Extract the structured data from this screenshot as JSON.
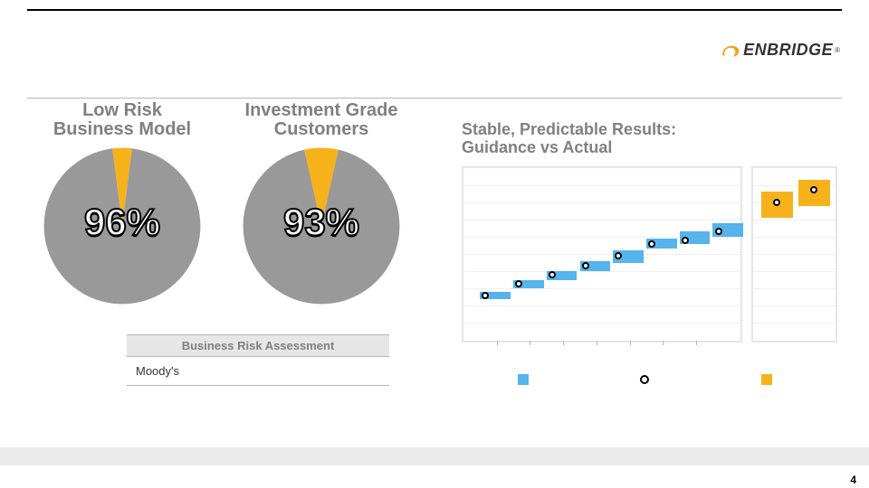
{
  "brand": {
    "name": "ENBRIDGE",
    "mark_color": "#f0a020",
    "text_color": "#333333"
  },
  "page_number": "4",
  "colors": {
    "gray": "#999999",
    "yellow": "#f6b21b",
    "blue": "#55b3ed",
    "heading_gray": "#808080",
    "grid": "#f0f0f0",
    "border": "#e6e6e6"
  },
  "pies": [
    {
      "title_line1": "Low Risk",
      "title_line2": "Business Model",
      "percent_label": "96%",
      "slices": [
        {
          "value": 4,
          "color": "#f6b21b"
        },
        {
          "value": 96,
          "color": "#999999"
        }
      ],
      "start_angle_deg": 0
    },
    {
      "title_line1": "Investment Grade",
      "title_line2": "Customers",
      "percent_label": "93%",
      "slices": [
        {
          "value": 7,
          "color": "#f6b21b"
        },
        {
          "value": 93,
          "color": "#999999"
        }
      ],
      "start_angle_deg": 0
    }
  ],
  "table": {
    "header": "Business Risk Assessment",
    "rows": [
      "Moody's"
    ]
  },
  "right_chart": {
    "title_line1": "Stable, Predictable Results:",
    "title_line2": "Guidance vs Actual",
    "y_min": 0,
    "y_max": 10,
    "gridlines": [
      1,
      2,
      3,
      4,
      5,
      6,
      7,
      8,
      9
    ],
    "main": {
      "bars": [
        {
          "x": 0.06,
          "low": 2.4,
          "high": 2.8,
          "color": "#55b3ed",
          "width": 0.11
        },
        {
          "x": 0.18,
          "low": 3.0,
          "high": 3.5,
          "color": "#55b3ed",
          "width": 0.11
        },
        {
          "x": 0.3,
          "low": 3.5,
          "high": 4.0,
          "color": "#55b3ed",
          "width": 0.11
        },
        {
          "x": 0.42,
          "low": 4.0,
          "high": 4.6,
          "color": "#55b3ed",
          "width": 0.11
        },
        {
          "x": 0.54,
          "low": 4.5,
          "high": 5.2,
          "color": "#55b3ed",
          "width": 0.11
        },
        {
          "x": 0.66,
          "low": 5.3,
          "high": 5.9,
          "color": "#55b3ed",
          "width": 0.11
        },
        {
          "x": 0.78,
          "low": 5.6,
          "high": 6.3,
          "color": "#55b3ed",
          "width": 0.11
        },
        {
          "x": 0.9,
          "low": 6.0,
          "high": 6.8,
          "color": "#55b3ed",
          "width": 0.11
        }
      ],
      "markers": [
        {
          "x": 0.08,
          "y": 2.6
        },
        {
          "x": 0.2,
          "y": 3.3
        },
        {
          "x": 0.32,
          "y": 3.8
        },
        {
          "x": 0.44,
          "y": 4.3
        },
        {
          "x": 0.56,
          "y": 4.9
        },
        {
          "x": 0.68,
          "y": 5.6
        },
        {
          "x": 0.8,
          "y": 5.8
        },
        {
          "x": 0.92,
          "y": 6.3
        }
      ],
      "ticks": [
        0.12,
        0.24,
        0.36,
        0.48,
        0.6,
        0.72,
        0.84
      ]
    },
    "side": {
      "bars": [
        {
          "x": 0.1,
          "low": 7.1,
          "high": 8.6,
          "color": "#f6b21b",
          "width": 0.38
        },
        {
          "x": 0.55,
          "low": 7.8,
          "high": 9.3,
          "color": "#f6b21b",
          "width": 0.38
        }
      ],
      "markers": [
        {
          "x": 0.29,
          "y": 8.0
        },
        {
          "x": 0.74,
          "y": 8.7
        }
      ]
    },
    "legend": [
      {
        "type": "square",
        "color": "#55b3ed"
      },
      {
        "type": "marker"
      },
      {
        "type": "square",
        "color": "#f6b21b"
      }
    ]
  }
}
